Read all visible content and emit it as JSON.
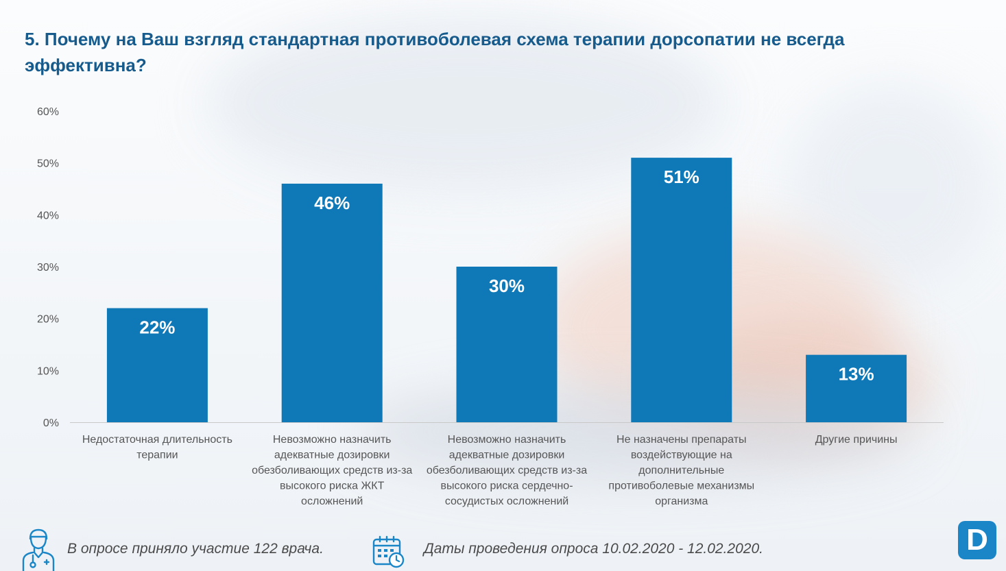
{
  "header": {
    "title": "5. Почему на Ваш взгляд стандартная противоболевая схема терапии дорсопатии не всегда эффективна?"
  },
  "chart_data": {
    "type": "bar",
    "title": "5. Почему на Ваш взгляд стандартная противоболевая схема терапии дорсопатии не всегда эффективна?",
    "categories": [
      [
        "Недостаточная длительность",
        "терапии"
      ],
      [
        "Невозможно назначить",
        "адекватные дозировки",
        "обезболивающих средств из-за",
        "высокого риска ЖКТ",
        "осложнений"
      ],
      [
        "Невозможно назначить",
        "адекватные дозировки",
        "обезболивающих средств из-за",
        "высокого риска сердечно-",
        "сосудистых  осложнений"
      ],
      [
        "Не назначены препараты",
        "воздействующие на",
        "дополнительные",
        "противоболевые механизмы",
        "организма"
      ],
      [
        "Другие причины"
      ]
    ],
    "values": [
      22,
      46,
      30,
      51,
      13
    ],
    "value_labels": [
      "22%",
      "46%",
      "30%",
      "51%",
      "13%"
    ],
    "y_ticks": [
      0,
      10,
      20,
      30,
      40,
      50,
      60
    ],
    "y_tick_labels": [
      "0%",
      "10%",
      "20%",
      "30%",
      "40%",
      "50%",
      "60%"
    ],
    "ylim": [
      0,
      60
    ],
    "grid": false,
    "legend": "none",
    "bar_color": "#0f78b7",
    "value_label_color": "#ffffff"
  },
  "footer": {
    "participants_text": "В опросе приняло участие 122 врача.",
    "dates_text": "Даты проведения опроса 10.02.2020 - 12.02.2020.",
    "doctor_icon": "doctor-icon",
    "calendar_icon": "calendar-clock-icon"
  },
  "logo": {
    "letter": "D",
    "color": "#1a86c8"
  }
}
